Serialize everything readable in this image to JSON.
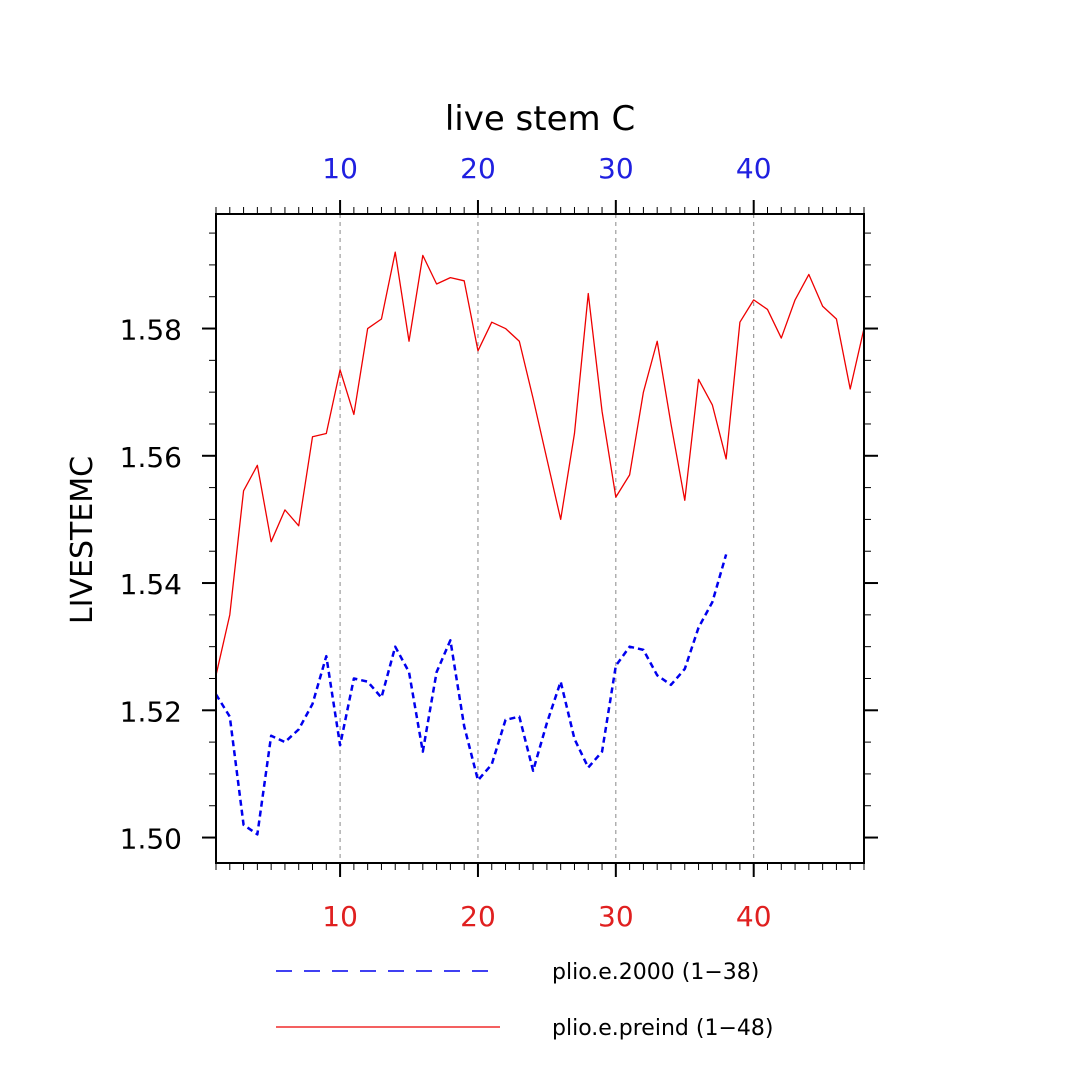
{
  "chart_data": {
    "type": "line",
    "title": "live stem C",
    "ylabel": "LIVESTEMC",
    "ylim": [
      1.496,
      1.598
    ],
    "yticks": [
      "1.50",
      "1.52",
      "1.54",
      "1.56",
      "1.58"
    ],
    "ytick_values": [
      1.5,
      1.52,
      1.54,
      1.56,
      1.58
    ],
    "x_top": {
      "xlim": [
        1,
        48
      ],
      "ticks": [
        10,
        20,
        30,
        40
      ],
      "labels": [
        "10",
        "20",
        "30",
        "40"
      ],
      "color": "#2020e0"
    },
    "x_bottom": {
      "xlim": [
        1,
        48
      ],
      "ticks": [
        10,
        20,
        30,
        40
      ],
      "labels": [
        "10",
        "20",
        "30",
        "40"
      ],
      "color": "#e02020"
    },
    "grid": "vertical dashed at major x ticks",
    "legend_position": "bottom",
    "series": [
      {
        "name": "plio.e.2000 (1−38)",
        "color": "#0000ee",
        "style": "dashed",
        "x_start": 1,
        "values": [
          1.5225,
          1.519,
          1.502,
          1.5005,
          1.516,
          1.515,
          1.517,
          1.521,
          1.5285,
          1.5145,
          1.525,
          1.5245,
          1.522,
          1.53,
          1.526,
          1.5135,
          1.526,
          1.531,
          1.5175,
          1.509,
          1.5115,
          1.5185,
          1.519,
          1.5105,
          1.518,
          1.5245,
          1.5155,
          1.511,
          1.5135,
          1.527,
          1.53,
          1.5295,
          1.5255,
          1.524,
          1.5265,
          1.533,
          1.537,
          1.5445
        ]
      },
      {
        "name": "plio.e.preind (1−48)",
        "color": "#ee0000",
        "style": "solid",
        "x_start": 1,
        "values": [
          1.5255,
          1.535,
          1.5545,
          1.5585,
          1.5465,
          1.5515,
          1.549,
          1.563,
          1.5635,
          1.5735,
          1.5665,
          1.58,
          1.5815,
          1.592,
          1.578,
          1.5915,
          1.587,
          1.588,
          1.5875,
          1.5765,
          1.581,
          1.58,
          1.578,
          1.569,
          1.5595,
          1.55,
          1.5635,
          1.5855,
          1.567,
          1.5535,
          1.557,
          1.57,
          1.578,
          1.565,
          1.553,
          1.572,
          1.568,
          1.5595,
          1.581,
          1.5845,
          1.583,
          1.5785,
          1.5845,
          1.5885,
          1.5835,
          1.5815,
          1.5705,
          1.58
        ]
      }
    ]
  }
}
